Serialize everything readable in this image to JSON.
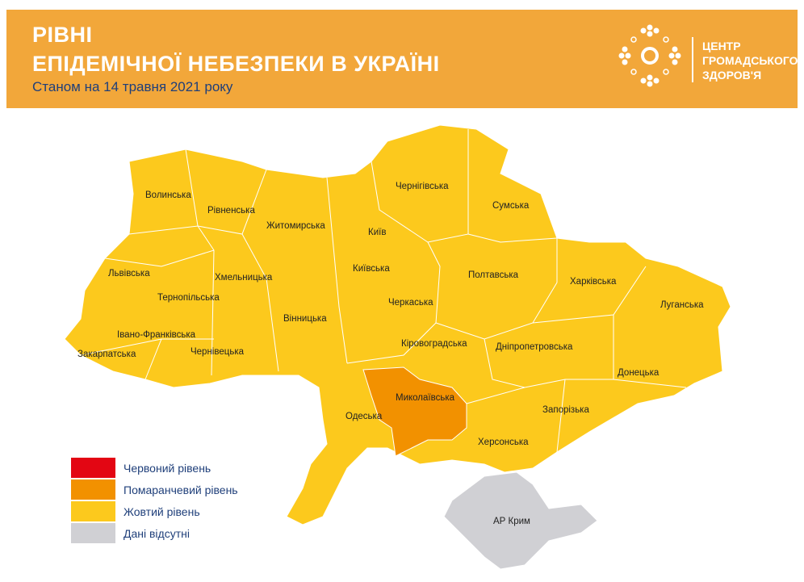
{
  "header": {
    "title_line1": "РІВНІ",
    "title_line2": "ЕПІДЕМІЧНОЇ НЕБЕЗПЕКИ В УКРАЇНІ",
    "subtitle": "Станом на 14 травня 2021 року",
    "org_name": "ЦЕНТР\nГРОМАДСЬКОГО\nЗДОРОВ'Я",
    "logo_icon": "dotted-sun-logo"
  },
  "colors": {
    "header": "#f2a73a",
    "red": "#e30613",
    "orange": "#f29100",
    "yellow": "#fcc91d",
    "grey": "#d0d0d4",
    "text": "#1f3f7a"
  },
  "regions": {
    "volynska": {
      "name": "Волинська",
      "level": "yellow"
    },
    "rivnenska": {
      "name": "Рівненська",
      "level": "yellow"
    },
    "zhytomyrska": {
      "name": "Житомирська",
      "level": "yellow"
    },
    "chernihivska": {
      "name": "Чернігівська",
      "level": "yellow"
    },
    "sumska": {
      "name": "Сумська",
      "level": "yellow"
    },
    "kyiv": {
      "name": "Київ",
      "level": "yellow"
    },
    "lvivska": {
      "name": "Львівська",
      "level": "yellow"
    },
    "khmelnytska": {
      "name": "Хмельницька",
      "level": "yellow"
    },
    "kyivska": {
      "name": "Київська",
      "level": "yellow"
    },
    "poltavska": {
      "name": "Полтавська",
      "level": "yellow"
    },
    "kharkivska": {
      "name": "Харківська",
      "level": "yellow"
    },
    "ternopilska": {
      "name": "Тернопільська",
      "level": "yellow"
    },
    "cherkaska": {
      "name": "Черкаська",
      "level": "yellow"
    },
    "luhanska": {
      "name": "Луганська",
      "level": "yellow"
    },
    "vinnytska": {
      "name": "Вінницька",
      "level": "yellow"
    },
    "ivanofrankivska": {
      "name": "Івано-Франківська",
      "level": "yellow"
    },
    "kirovohradska": {
      "name": "Кіровоградська",
      "level": "yellow"
    },
    "dnipropetrovska": {
      "name": "Дніпропетровська",
      "level": "yellow"
    },
    "zakarpatska": {
      "name": "Закарпатська",
      "level": "yellow"
    },
    "chernivetska": {
      "name": "Чернівецька",
      "level": "yellow"
    },
    "donetska": {
      "name": "Донецька",
      "level": "yellow"
    },
    "mykolaivska": {
      "name": "Миколаївська",
      "level": "orange"
    },
    "odeska": {
      "name": "Одеська",
      "level": "yellow"
    },
    "zaporizka": {
      "name": "Запорізька",
      "level": "yellow"
    },
    "khersonska": {
      "name": "Херсонська",
      "level": "yellow"
    },
    "crimea": {
      "name": "АР Крим",
      "level": "grey"
    }
  },
  "legend": [
    {
      "label": "Червоний рівень",
      "color": "#e30613"
    },
    {
      "label": "Помаранчевий рівень",
      "color": "#f29100"
    },
    {
      "label": "Жовтий рівень",
      "color": "#fcc91d"
    },
    {
      "label": "Дані відсутні",
      "color": "#d0d0d4"
    }
  ]
}
